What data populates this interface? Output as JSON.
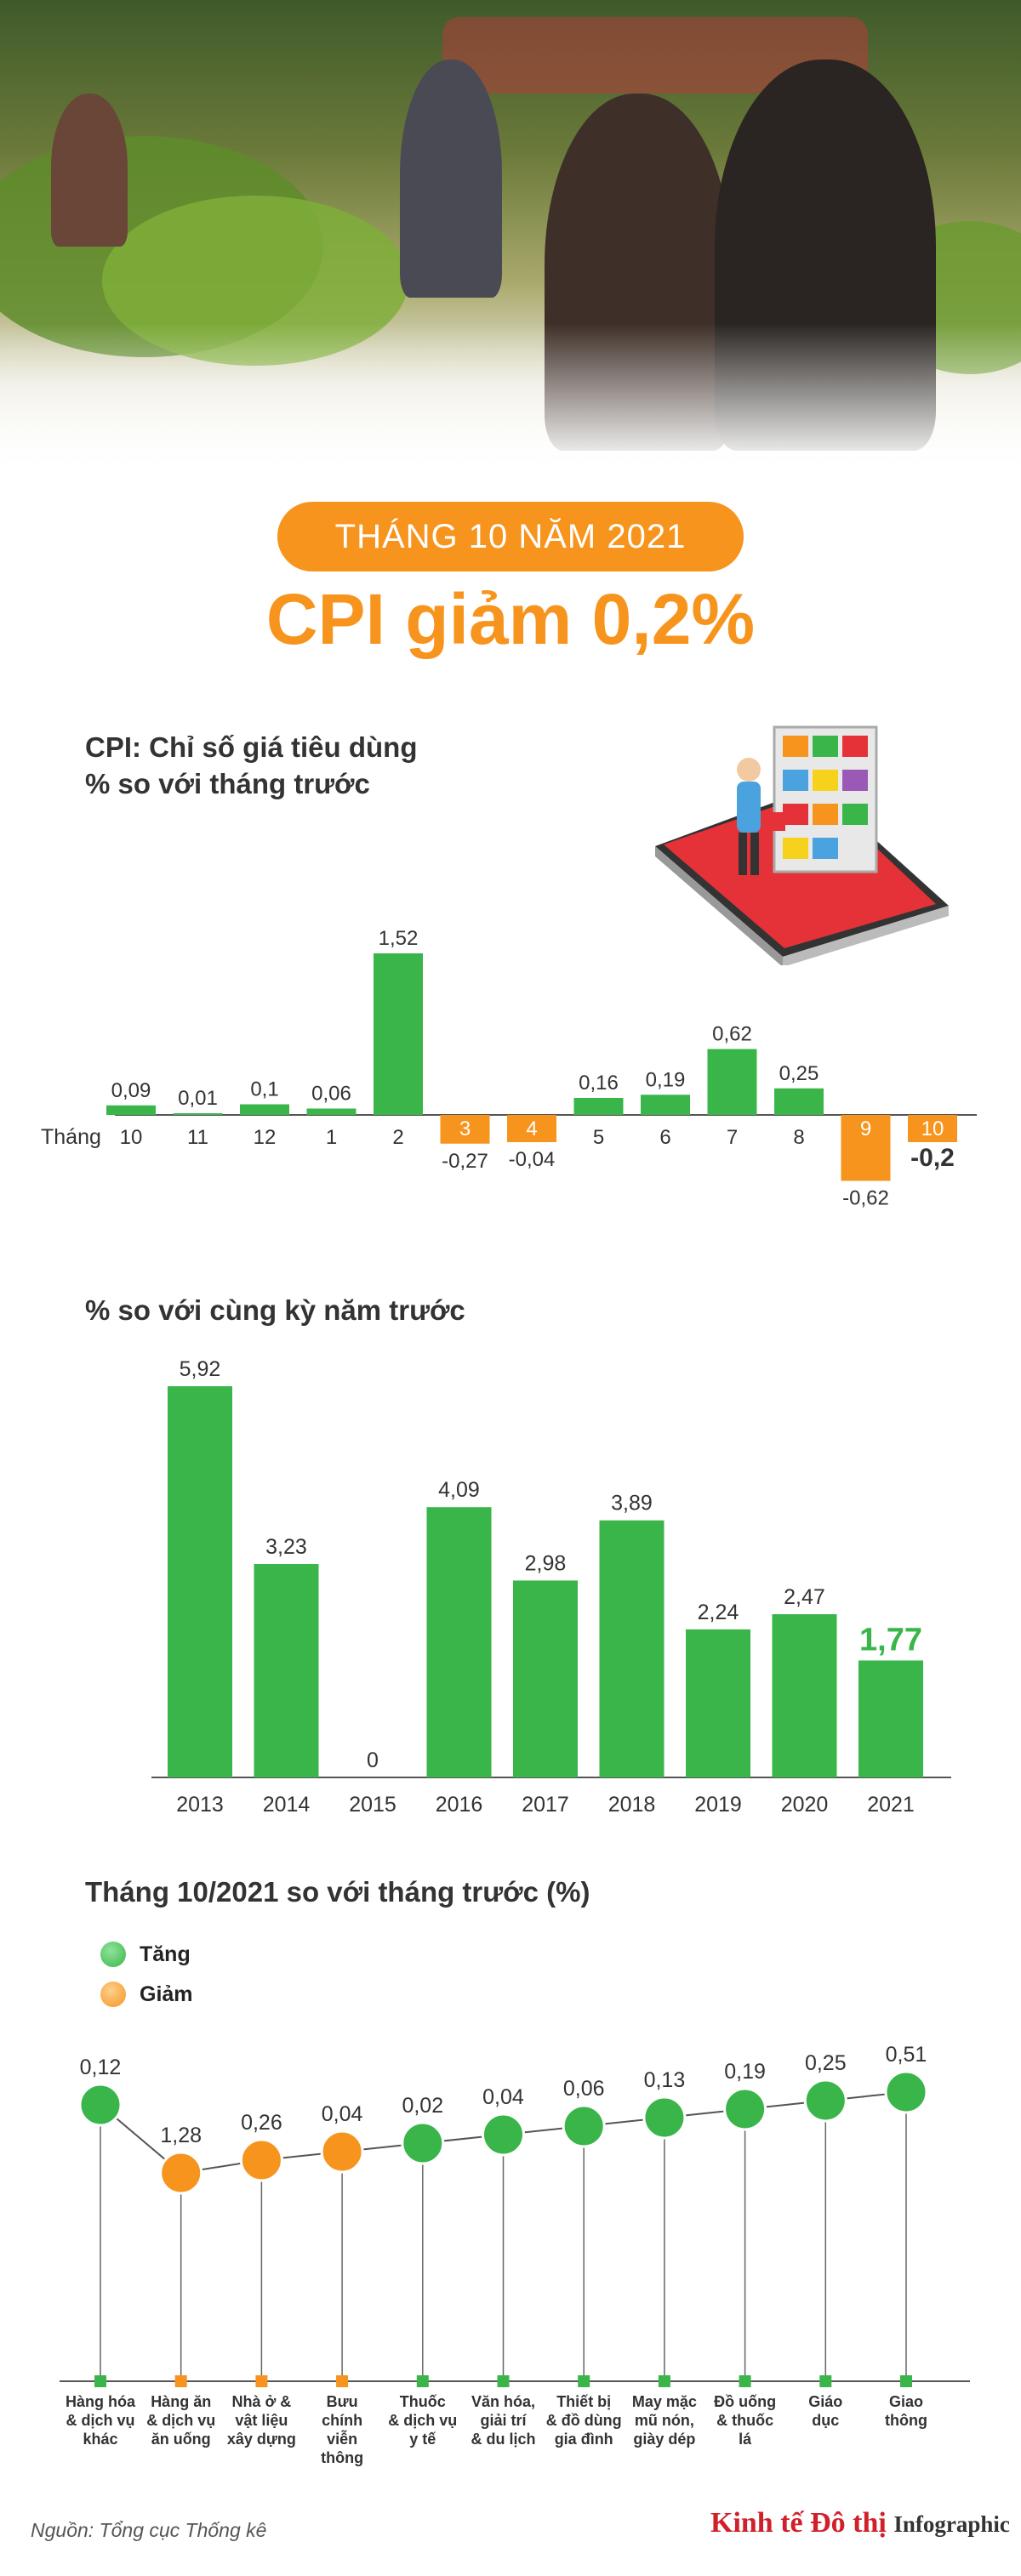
{
  "header": {
    "pill_text": "THÁNG 10 NĂM 2021",
    "headline": "CPI giảm 0,2%"
  },
  "colors": {
    "increase": "#3ab54a",
    "decrease": "#f7941d",
    "accent_orange": "#f7941d"
  },
  "section1": {
    "title_line1": "CPI: Chỉ số giá tiêu dùng",
    "title_line2": "% so với tháng trước",
    "axis_prefix": "Tháng"
  },
  "section2": {
    "title": "% so với cùng kỳ năm trước"
  },
  "section3": {
    "title": "Tháng 10/2021 so với tháng trước (%)",
    "legend_increase": "Tăng",
    "legend_decrease": "Giảm"
  },
  "footer": {
    "source": "Nguồn: Tổng cục Thống kê",
    "brand": "Kinh tế Đô thị",
    "brand_suffix": "Infographic"
  },
  "chart_data": [
    {
      "type": "bar",
      "categories": [
        "10",
        "11",
        "12",
        "1",
        "2",
        "3",
        "4",
        "5",
        "6",
        "7",
        "8",
        "9",
        "10"
      ],
      "values": [
        0.09,
        0.01,
        0.1,
        0.06,
        1.52,
        -0.27,
        -0.04,
        0.16,
        0.19,
        0.62,
        0.25,
        -0.62,
        -0.2
      ],
      "labels": [
        "0,09",
        "0,01",
        "0,1",
        "0,06",
        "1,52",
        "-0,27",
        "-0,04",
        "0,16",
        "0,19",
        "0,62",
        "0,25",
        "-0,62",
        "-0,2"
      ],
      "ylim": [
        -0.62,
        1.52
      ]
    },
    {
      "type": "bar",
      "categories": [
        "2013",
        "2014",
        "2015",
        "2016",
        "2017",
        "2018",
        "2019",
        "2020",
        "2021"
      ],
      "values": [
        5.92,
        3.23,
        0,
        4.09,
        2.98,
        3.89,
        2.24,
        2.47,
        1.77
      ],
      "labels": [
        "5,92",
        "3,23",
        "0",
        "4,09",
        "2,98",
        "3,89",
        "2,24",
        "2,47",
        "1,77"
      ],
      "ylim": [
        0,
        5.92
      ]
    },
    {
      "type": "line",
      "categories": [
        "Hàng hóa & dịch vụ khác",
        "Hàng ăn & dịch vụ ăn uống",
        "Nhà ở & vật liệu xây dựng",
        "Bưu chính viễn thông",
        "Thuốc & dịch vụ y tế",
        "Văn hóa, giải trí & du lịch",
        "Thiết bị & đồ dùng gia đình",
        "May mặc mũ nón, giày dép",
        "Đồ uống & thuốc lá",
        "Giáo dục",
        "Giao thông"
      ],
      "category_lines": [
        [
          "Hàng hóa",
          "& dịch vụ",
          "khác"
        ],
        [
          "Hàng ăn",
          "& dịch vụ",
          "ăn uống"
        ],
        [
          "Nhà ở &",
          "vật liệu",
          "xây dựng"
        ],
        [
          "Bưu",
          "chính",
          "viễn",
          "thông"
        ],
        [
          "Thuốc",
          "& dịch vụ",
          "y tế"
        ],
        [
          "Văn hóa,",
          "giải trí",
          "& du lịch"
        ],
        [
          "Thiết bị",
          "& đồ dùng",
          "gia đình"
        ],
        [
          "May mặc",
          "mũ nón,",
          "giày dép"
        ],
        [
          "Đồ uống",
          "& thuốc",
          "lá"
        ],
        [
          "Giáo",
          "dục"
        ],
        [
          "Giao",
          "thông"
        ]
      ],
      "values": [
        0.12,
        -1.28,
        -0.26,
        -0.04,
        0.02,
        0.04,
        0.06,
        0.13,
        0.19,
        0.25,
        0.51
      ],
      "labels": [
        "0,12",
        "1,28",
        "0,26",
        "0,04",
        "0,02",
        "0,04",
        "0,06",
        "0,13",
        "0,19",
        "0,25",
        "0,51"
      ],
      "direction": [
        "up",
        "down",
        "down",
        "down",
        "up",
        "up",
        "up",
        "up",
        "up",
        "up",
        "up"
      ]
    }
  ]
}
